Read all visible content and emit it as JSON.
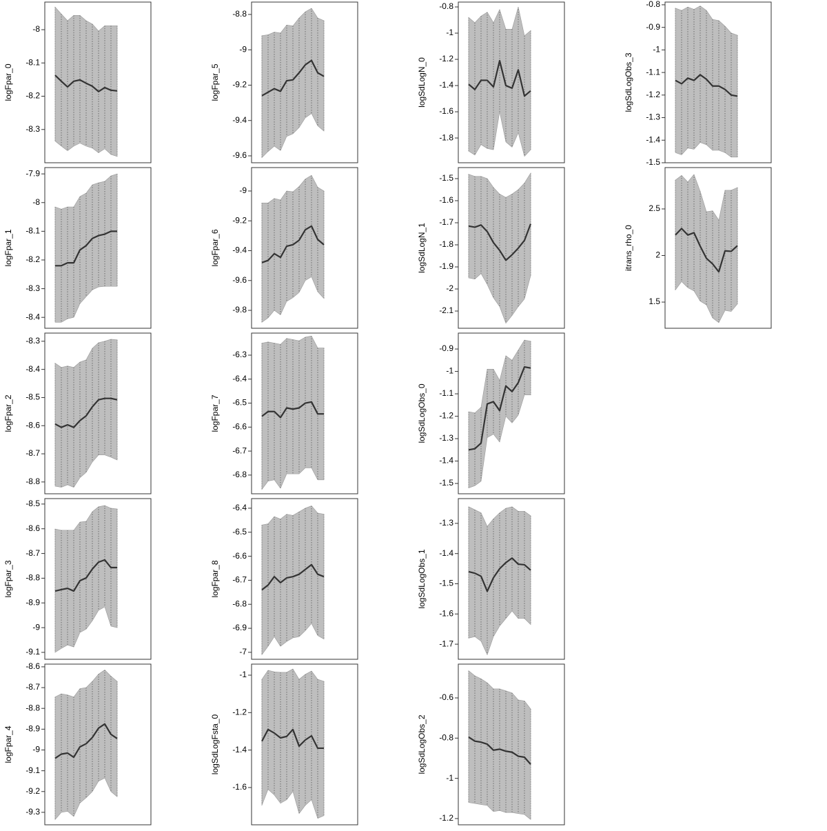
{
  "chart_data": [
    {
      "type": "line",
      "ylabel": "logFpar_0",
      "categories": [
        null,
        null,
        null,
        null,
        null,
        null,
        null,
        null,
        null,
        null,
        null
      ],
      "ylim": [
        -8.4,
        -7.917
      ],
      "yticks": [
        -8.3,
        -8.2,
        -8.1,
        -8.0
      ],
      "color": "#333333",
      "band_color": "#bebebe",
      "values": [
        -8.137,
        -8.155,
        -8.172,
        -8.155,
        -8.151,
        -8.161,
        -8.17,
        -8.186,
        -8.174,
        -8.182,
        -8.184
      ],
      "upper": [
        -7.932,
        -7.953,
        -7.973,
        -7.957,
        -7.957,
        -7.973,
        -7.983,
        -8.004,
        -7.988,
        -7.988,
        -7.988
      ],
      "lower": [
        -8.335,
        -8.35,
        -8.364,
        -8.35,
        -8.341,
        -8.35,
        -8.356,
        -8.37,
        -8.358,
        -8.375,
        -8.381
      ]
    },
    {
      "type": "line",
      "ylabel": "logFpar_1",
      "categories": [
        null,
        null,
        null,
        null,
        null,
        null,
        null,
        null,
        null,
        null,
        null
      ],
      "ylim": [
        -8.438,
        -7.878
      ],
      "yticks": [
        -8.4,
        -8.3,
        -8.2,
        -8.1,
        -8.0,
        -7.9
      ],
      "color": "#333333",
      "band_color": "#bebebe",
      "values": [
        -8.22,
        -8.22,
        -8.21,
        -8.21,
        -8.165,
        -8.15,
        -8.125,
        -8.115,
        -8.11,
        -8.1,
        -8.1
      ],
      "upper": [
        -8.015,
        -8.023,
        -8.015,
        -8.015,
        -7.979,
        -7.967,
        -7.938,
        -7.931,
        -7.926,
        -7.907,
        -7.9
      ],
      "lower": [
        -8.417,
        -8.417,
        -8.405,
        -8.4,
        -8.352,
        -8.328,
        -8.304,
        -8.294,
        -8.292,
        -8.292,
        -8.292
      ]
    },
    {
      "type": "line",
      "ylabel": "logFpar_2",
      "categories": [
        null,
        null,
        null,
        null,
        null,
        null,
        null,
        null,
        null,
        null,
        null
      ],
      "ylim": [
        -8.842,
        -8.271
      ],
      "yticks": [
        -8.8,
        -8.7,
        -8.6,
        -8.5,
        -8.4,
        -8.3
      ],
      "color": "#333333",
      "band_color": "#bebebe",
      "values": [
        -8.594,
        -8.606,
        -8.597,
        -8.606,
        -8.582,
        -8.565,
        -8.533,
        -8.508,
        -8.503,
        -8.503,
        -8.508
      ],
      "upper": [
        -8.378,
        -8.393,
        -8.388,
        -8.393,
        -8.374,
        -8.366,
        -8.325,
        -8.305,
        -8.3,
        -8.293,
        -8.295
      ],
      "lower": [
        -8.815,
        -8.819,
        -8.81,
        -8.819,
        -8.785,
        -8.766,
        -8.729,
        -8.704,
        -8.704,
        -8.712,
        -8.722
      ]
    },
    {
      "type": "line",
      "ylabel": "logFpar_3",
      "categories": [
        null,
        null,
        null,
        null,
        null,
        null,
        null,
        null,
        null,
        null,
        null
      ],
      "ylim": [
        -9.128,
        -8.478
      ],
      "yticks": [
        -9.1,
        -9.0,
        -8.9,
        -8.8,
        -8.7,
        -8.6,
        -8.5
      ],
      "color": "#333333",
      "band_color": "#bebebe",
      "values": [
        -8.852,
        -8.846,
        -8.841,
        -8.852,
        -8.81,
        -8.799,
        -8.763,
        -8.735,
        -8.726,
        -8.757,
        -8.757
      ],
      "upper": [
        -8.601,
        -8.606,
        -8.606,
        -8.606,
        -8.573,
        -8.57,
        -8.531,
        -8.511,
        -8.506,
        -8.517,
        -8.52
      ],
      "lower": [
        -9.1,
        -9.084,
        -9.07,
        -9.078,
        -9.02,
        -9.006,
        -8.972,
        -8.93,
        -8.916,
        -8.994,
        -9.0
      ]
    },
    {
      "type": "line",
      "ylabel": "logFpar_4",
      "categories": [
        null,
        null,
        null,
        null,
        null,
        null,
        null,
        null,
        null,
        null,
        null
      ],
      "ylim": [
        -9.36,
        -8.587
      ],
      "yticks": [
        -9.3,
        -9.2,
        -9.1,
        -9.0,
        -8.9,
        -8.8,
        -8.7,
        -8.6
      ],
      "color": "#333333",
      "band_color": "#bebebe",
      "values": [
        -9.04,
        -9.02,
        -9.015,
        -9.035,
        -8.985,
        -8.97,
        -8.94,
        -8.895,
        -8.875,
        -8.925,
        -8.945
      ],
      "upper": [
        -8.745,
        -8.73,
        -8.735,
        -8.745,
        -8.705,
        -8.7,
        -8.67,
        -8.635,
        -8.615,
        -8.645,
        -8.67
      ],
      "lower": [
        -9.335,
        -9.3,
        -9.295,
        -9.32,
        -9.255,
        -9.23,
        -9.2,
        -9.15,
        -9.135,
        -9.2,
        -9.225
      ]
    },
    {
      "type": "line",
      "ylabel": "logFpar_5",
      "categories": [
        null,
        null,
        null,
        null,
        null,
        null,
        null,
        null,
        null,
        null,
        null
      ],
      "ylim": [
        -9.639,
        -8.73
      ],
      "yticks": [
        -9.6,
        -9.4,
        -9.2,
        -9.0,
        -8.8
      ],
      "color": "#333333",
      "band_color": "#bebebe",
      "values": [
        -9.26,
        -9.24,
        -9.22,
        -9.235,
        -9.175,
        -9.17,
        -9.13,
        -9.085,
        -9.06,
        -9.13,
        -9.15
      ],
      "upper": [
        -8.92,
        -8.915,
        -8.9,
        -8.905,
        -8.86,
        -8.865,
        -8.82,
        -8.785,
        -8.765,
        -8.82,
        -8.835
      ],
      "lower": [
        -9.61,
        -9.575,
        -9.545,
        -9.57,
        -9.49,
        -9.475,
        -9.44,
        -9.385,
        -9.36,
        -9.43,
        -9.46
      ]
    },
    {
      "type": "line",
      "ylabel": "logFpar_6",
      "categories": [
        null,
        null,
        null,
        null,
        null,
        null,
        null,
        null,
        null,
        null,
        null
      ],
      "ylim": [
        -9.92,
        -8.843
      ],
      "yticks": [
        -9.8,
        -9.6,
        -9.4,
        -9.2,
        -9.0
      ],
      "color": "#333333",
      "band_color": "#bebebe",
      "values": [
        -9.48,
        -9.465,
        -9.42,
        -9.445,
        -9.37,
        -9.36,
        -9.33,
        -9.26,
        -9.235,
        -9.325,
        -9.36
      ],
      "upper": [
        -9.08,
        -9.08,
        -9.05,
        -9.06,
        -9.0,
        -9.005,
        -8.97,
        -8.92,
        -8.895,
        -8.975,
        -9.0
      ],
      "lower": [
        -9.88,
        -9.85,
        -9.8,
        -9.83,
        -9.74,
        -9.715,
        -9.68,
        -9.6,
        -9.575,
        -9.675,
        -9.72
      ]
    },
    {
      "type": "line",
      "ylabel": "logFpar_7",
      "categories": [
        null,
        null,
        null,
        null,
        null,
        null,
        null,
        null,
        null,
        null,
        null
      ],
      "ylim": [
        -6.878,
        -6.208
      ],
      "yticks": [
        -6.8,
        -6.7,
        -6.6,
        -6.5,
        -6.4,
        -6.3
      ],
      "color": "#333333",
      "band_color": "#bebebe",
      "values": [
        -6.555,
        -6.535,
        -6.535,
        -6.56,
        -6.52,
        -6.525,
        -6.52,
        -6.5,
        -6.495,
        -6.545,
        -6.545
      ],
      "upper": [
        -6.25,
        -6.245,
        -6.25,
        -6.255,
        -6.23,
        -6.235,
        -6.24,
        -6.225,
        -6.22,
        -6.27,
        -6.27
      ],
      "lower": [
        -6.86,
        -6.825,
        -6.82,
        -6.855,
        -6.795,
        -6.795,
        -6.795,
        -6.77,
        -6.77,
        -6.82,
        -6.82
      ]
    },
    {
      "type": "line",
      "ylabel": "logFpar_8",
      "categories": [
        null,
        null,
        null,
        null,
        null,
        null,
        null,
        null,
        null,
        null,
        null
      ],
      "ylim": [
        -7.029,
        -6.36
      ],
      "yticks": [
        -7.0,
        -6.9,
        -6.8,
        -6.7,
        -6.6,
        -6.5,
        -6.4
      ],
      "color": "#333333",
      "band_color": "#bebebe",
      "values": [
        -6.74,
        -6.72,
        -6.685,
        -6.71,
        -6.69,
        -6.685,
        -6.675,
        -6.655,
        -6.635,
        -6.675,
        -6.685
      ],
      "upper": [
        -6.47,
        -6.465,
        -6.435,
        -6.445,
        -6.425,
        -6.43,
        -6.415,
        -6.4,
        -6.39,
        -6.42,
        -6.425
      ],
      "lower": [
        -7.01,
        -6.975,
        -6.935,
        -6.975,
        -6.955,
        -6.94,
        -6.935,
        -6.91,
        -6.88,
        -6.93,
        -6.945
      ]
    },
    {
      "type": "line",
      "ylabel": "logSdLogFsta_0",
      "categories": [
        null,
        null,
        null,
        null,
        null,
        null,
        null,
        null,
        null,
        null,
        null
      ],
      "ylim": [
        -1.799,
        -0.941
      ],
      "yticks": [
        -1.6,
        -1.4,
        -1.2,
        -1.0
      ],
      "color": "#333333",
      "band_color": "#bebebe",
      "values": [
        -1.353,
        -1.29,
        -1.309,
        -1.335,
        -1.327,
        -1.29,
        -1.379,
        -1.346,
        -1.324,
        -1.39,
        -1.39
      ],
      "upper": [
        -1.022,
        -0.974,
        -0.982,
        -0.985,
        -0.985,
        -0.967,
        -1.022,
        -0.996,
        -0.978,
        -1.022,
        -1.033
      ],
      "lower": [
        -1.695,
        -1.61,
        -1.64,
        -1.684,
        -1.665,
        -1.621,
        -1.739,
        -1.695,
        -1.665,
        -1.765,
        -1.75
      ]
    },
    {
      "type": "line",
      "ylabel": "logSdLogN_0",
      "categories": [
        null,
        null,
        null,
        null,
        null,
        null,
        null,
        null,
        null,
        null,
        null
      ],
      "ylim": [
        -1.989,
        -0.763
      ],
      "yticks": [
        -1.8,
        -1.6,
        -1.4,
        -1.2,
        -1.0,
        -0.8
      ],
      "color": "#333333",
      "band_color": "#bebebe",
      "values": [
        -1.39,
        -1.43,
        -1.36,
        -1.36,
        -1.41,
        -1.21,
        -1.4,
        -1.42,
        -1.28,
        -1.48,
        -1.44
      ],
      "upper": [
        -0.88,
        -0.92,
        -0.87,
        -0.84,
        -0.92,
        -0.82,
        -0.97,
        -0.97,
        -0.8,
        -1.02,
        -0.98
      ],
      "lower": [
        -1.9,
        -1.93,
        -1.85,
        -1.88,
        -1.89,
        -1.6,
        -1.83,
        -1.87,
        -1.76,
        -1.94,
        -1.89
      ]
    },
    {
      "type": "line",
      "ylabel": "logSdLogN_1",
      "categories": [
        null,
        null,
        null,
        null,
        null,
        null,
        null,
        null,
        null,
        null,
        null
      ],
      "ylim": [
        -2.178,
        -1.45
      ],
      "yticks": [
        -2.1,
        -2.0,
        -1.9,
        -1.8,
        -1.7,
        -1.6,
        -1.5
      ],
      "color": "#333333",
      "band_color": "#bebebe",
      "values": [
        -1.715,
        -1.72,
        -1.71,
        -1.74,
        -1.79,
        -1.825,
        -1.87,
        -1.845,
        -1.815,
        -1.78,
        -1.705
      ],
      "upper": [
        -1.48,
        -1.49,
        -1.49,
        -1.5,
        -1.54,
        -1.57,
        -1.585,
        -1.57,
        -1.55,
        -1.52,
        -1.475
      ],
      "lower": [
        -1.95,
        -1.955,
        -1.93,
        -1.98,
        -2.04,
        -2.08,
        -2.155,
        -2.12,
        -2.08,
        -2.045,
        -1.94
      ]
    },
    {
      "type": "line",
      "ylabel": "logSdLogObs_0",
      "categories": [
        null,
        null,
        null,
        null,
        null,
        null,
        null,
        null,
        null,
        null,
        null
      ],
      "ylim": [
        -1.546,
        -0.829
      ],
      "yticks": [
        -1.5,
        -1.4,
        -1.3,
        -1.2,
        -1.1,
        -1.0,
        -0.9
      ],
      "color": "#333333",
      "band_color": "#bebebe",
      "values": [
        -1.35,
        -1.345,
        -1.32,
        -1.145,
        -1.135,
        -1.175,
        -1.065,
        -1.09,
        -1.05,
        -0.98,
        -0.985
      ],
      "upper": [
        -1.18,
        -1.185,
        -1.16,
        -0.99,
        -0.99,
        -1.04,
        -0.93,
        -0.95,
        -0.905,
        -0.86,
        -0.865
      ],
      "lower": [
        -1.52,
        -1.51,
        -1.49,
        -1.295,
        -1.28,
        -1.315,
        -1.2,
        -1.23,
        -1.195,
        -1.105,
        -1.105
      ]
    },
    {
      "type": "line",
      "ylabel": "logSdLogObs_1",
      "categories": [
        null,
        null,
        null,
        null,
        null,
        null,
        null,
        null,
        null,
        null,
        null
      ],
      "ylim": [
        -1.75,
        -1.218
      ],
      "yticks": [
        -1.7,
        -1.6,
        -1.5,
        -1.4,
        -1.3
      ],
      "color": "#333333",
      "band_color": "#bebebe",
      "values": [
        -1.46,
        -1.465,
        -1.475,
        -1.525,
        -1.48,
        -1.45,
        -1.43,
        -1.415,
        -1.435,
        -1.437,
        -1.455
      ],
      "upper": [
        -1.245,
        -1.255,
        -1.265,
        -1.31,
        -1.285,
        -1.265,
        -1.25,
        -1.245,
        -1.26,
        -1.26,
        -1.275
      ],
      "lower": [
        -1.68,
        -1.675,
        -1.69,
        -1.735,
        -1.675,
        -1.64,
        -1.615,
        -1.59,
        -1.615,
        -1.615,
        -1.635
      ]
    },
    {
      "type": "line",
      "ylabel": "logSdLogObs_2",
      "categories": [
        null,
        null,
        null,
        null,
        null,
        null,
        null,
        null,
        null,
        null,
        null
      ],
      "ylim": [
        -1.231,
        -0.432
      ],
      "yticks": [
        -1.2,
        -1.0,
        -0.8,
        -0.6
      ],
      "color": "#333333",
      "band_color": "#bebebe",
      "values": [
        -0.795,
        -0.815,
        -0.82,
        -0.83,
        -0.86,
        -0.855,
        -0.865,
        -0.87,
        -0.89,
        -0.895,
        -0.93
      ],
      "upper": [
        -0.465,
        -0.49,
        -0.505,
        -0.525,
        -0.555,
        -0.555,
        -0.565,
        -0.575,
        -0.61,
        -0.615,
        -0.655
      ],
      "lower": [
        -1.12,
        -1.125,
        -1.13,
        -1.135,
        -1.165,
        -1.16,
        -1.17,
        -1.17,
        -1.175,
        -1.18,
        -1.205
      ]
    },
    {
      "type": "line",
      "ylabel": "logSdLogObs_3",
      "categories": [
        null,
        null,
        null,
        null,
        null,
        null,
        null,
        null,
        null,
        null,
        null
      ],
      "ylim": [
        -1.5,
        -0.788
      ],
      "yticks": [
        -1.5,
        -1.4,
        -1.3,
        -1.2,
        -1.1,
        -1.0,
        -0.9,
        -0.8
      ],
      "color": "#333333",
      "band_color": "#bebebe",
      "values": [
        -1.135,
        -1.15,
        -1.125,
        -1.135,
        -1.11,
        -1.13,
        -1.16,
        -1.16,
        -1.175,
        -1.2,
        -1.205
      ],
      "upper": [
        -0.815,
        -0.825,
        -0.81,
        -0.82,
        -0.805,
        -0.825,
        -0.865,
        -0.87,
        -0.895,
        -0.925,
        -0.935
      ],
      "lower": [
        -1.455,
        -1.465,
        -1.435,
        -1.44,
        -1.41,
        -1.42,
        -1.445,
        -1.445,
        -1.455,
        -1.475,
        -1.475
      ]
    },
    {
      "type": "line",
      "ylabel": "itrans_rho_0",
      "categories": [
        null,
        null,
        null,
        null,
        null,
        null,
        null,
        null,
        null,
        null,
        null
      ],
      "ylim": [
        1.219,
        2.944
      ],
      "yticks": [
        1.5,
        2.0,
        2.5
      ],
      "color": "#333333",
      "band_color": "#bebebe",
      "values": [
        2.22,
        2.29,
        2.22,
        2.245,
        2.1,
        1.97,
        1.91,
        1.825,
        2.05,
        2.045,
        2.105
      ],
      "upper": [
        2.81,
        2.86,
        2.79,
        2.87,
        2.69,
        2.47,
        2.48,
        2.38,
        2.7,
        2.7,
        2.73
      ],
      "lower": [
        1.63,
        1.72,
        1.655,
        1.62,
        1.51,
        1.47,
        1.33,
        1.28,
        1.41,
        1.4,
        1.48
      ]
    }
  ]
}
